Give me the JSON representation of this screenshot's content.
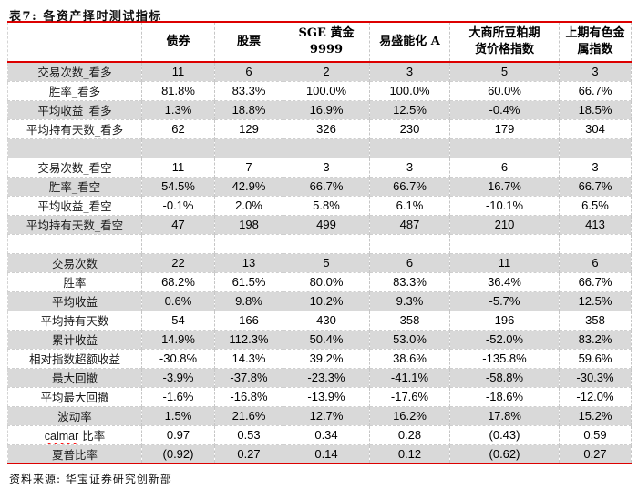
{
  "title": "表7: 各资产择时测试指标",
  "source": "资料来源: 华宝证券研究创新部",
  "colors": {
    "rule_red": "#dd0000",
    "row_shade": "#d9d9d9",
    "dashed_grid": "#c6c6c6",
    "spellcheck_red": "#ff0000"
  },
  "table": {
    "columns": [
      {
        "lines": [
          "债券"
        ]
      },
      {
        "lines": [
          "股票"
        ]
      },
      {
        "lines": [
          "SGE 黄金",
          "9999"
        ]
      },
      {
        "lines": [
          "易盛能化 A"
        ]
      },
      {
        "lines": [
          "大商所豆粕期",
          "货价格指数"
        ]
      },
      {
        "lines": [
          "上期有色金",
          "属指数"
        ]
      }
    ],
    "rows": [
      {
        "label": "交易次数_看多",
        "values": [
          "11",
          "6",
          "2",
          "3",
          "5",
          "3"
        ]
      },
      {
        "label": "胜率_看多",
        "values": [
          "81.8%",
          "83.3%",
          "100.0%",
          "100.0%",
          "60.0%",
          "66.7%"
        ]
      },
      {
        "label": "平均收益_看多",
        "values": [
          "1.3%",
          "18.8%",
          "16.9%",
          "12.5%",
          "-0.4%",
          "18.5%"
        ]
      },
      {
        "label": "平均持有天数_看多",
        "values": [
          "62",
          "129",
          "326",
          "230",
          "179",
          "304"
        ]
      },
      {
        "label": "",
        "values": [
          "",
          "",
          "",
          "",
          "",
          ""
        ],
        "blank": true
      },
      {
        "label": "交易次数_看空",
        "values": [
          "11",
          "7",
          "3",
          "3",
          "6",
          "3"
        ]
      },
      {
        "label": "胜率_看空",
        "values": [
          "54.5%",
          "42.9%",
          "66.7%",
          "66.7%",
          "16.7%",
          "66.7%"
        ]
      },
      {
        "label": "平均收益_看空",
        "values": [
          "-0.1%",
          "2.0%",
          "5.8%",
          "6.1%",
          "-10.1%",
          "6.5%"
        ]
      },
      {
        "label": "平均持有天数_看空",
        "values": [
          "47",
          "198",
          "499",
          "487",
          "210",
          "413"
        ]
      },
      {
        "label": "",
        "values": [
          "",
          "",
          "",
          "",
          "",
          ""
        ],
        "blank": true
      },
      {
        "label": "交易次数",
        "values": [
          "22",
          "13",
          "5",
          "6",
          "11",
          "6"
        ]
      },
      {
        "label": "胜率",
        "values": [
          "68.2%",
          "61.5%",
          "80.0%",
          "83.3%",
          "36.4%",
          "66.7%"
        ]
      },
      {
        "label": "平均收益",
        "values": [
          "0.6%",
          "9.8%",
          "10.2%",
          "9.3%",
          "-5.7%",
          "12.5%"
        ]
      },
      {
        "label": "平均持有天数",
        "values": [
          "54",
          "166",
          "430",
          "358",
          "196",
          "358"
        ]
      },
      {
        "label": "累计收益",
        "values": [
          "14.9%",
          "112.3%",
          "50.4%",
          "53.0%",
          "-52.0%",
          "83.2%"
        ]
      },
      {
        "label": "相对指数超额收益",
        "values": [
          "-30.8%",
          "14.3%",
          "39.2%",
          "38.6%",
          "-135.8%",
          "59.6%"
        ]
      },
      {
        "label": "最大回撤",
        "values": [
          "-3.9%",
          "-37.8%",
          "-23.3%",
          "-41.1%",
          "-58.8%",
          "-30.3%"
        ]
      },
      {
        "label": "平均最大回撤",
        "values": [
          "-1.6%",
          "-16.8%",
          "-13.9%",
          "-17.6%",
          "-18.6%",
          "-12.0%"
        ]
      },
      {
        "label": "波动率",
        "values": [
          "1.5%",
          "21.6%",
          "12.7%",
          "16.2%",
          "17.8%",
          "15.2%"
        ]
      },
      {
        "label": "calmar 比率",
        "values": [
          "0.97",
          "0.53",
          "0.34",
          "0.28",
          "(0.43)",
          "0.59"
        ],
        "misspell": "calmar"
      },
      {
        "label": "夏普比率",
        "values": [
          "(0.92)",
          "0.27",
          "0.14",
          "0.12",
          "(0.62)",
          "0.27"
        ]
      }
    ]
  }
}
